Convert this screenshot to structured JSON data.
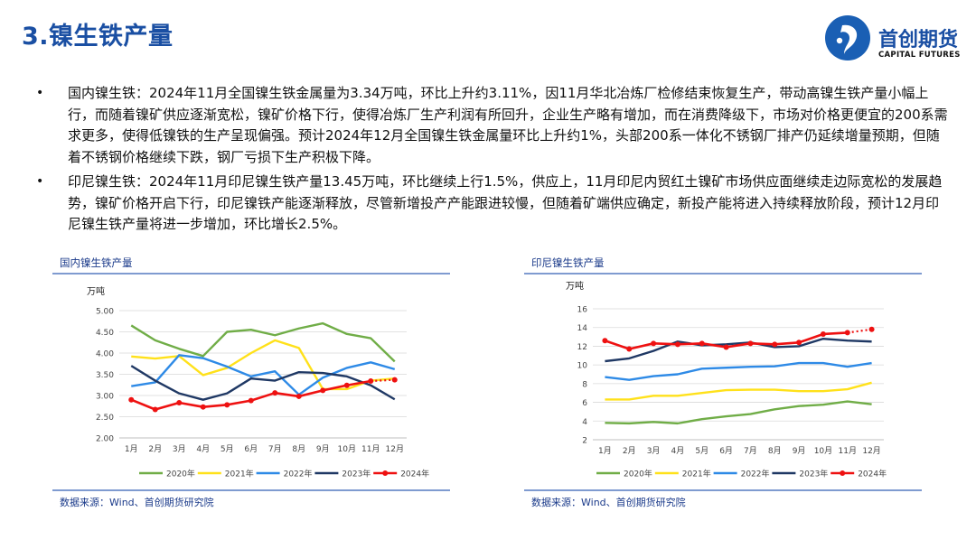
{
  "slide": {
    "title": "3.镍生铁产量"
  },
  "logo": {
    "name_cn": "首创期货",
    "name_en": "CAPITAL FUTURES",
    "colors": {
      "primary": "#1a5fb4",
      "text": "#111111"
    }
  },
  "bullets": [
    "国内镍生铁：2024年11月全国镍生铁金属量为3.34万吨，环比上升约3.11%，因11月华北冶炼厂检修结束恢复生产，带动高镍生铁产量小幅上行，而随着镍矿供应逐渐宽松，镍矿价格下行，使得冶炼厂生产利润有所回升，企业生产略有增加，而在消费降级下，市场对价格更便宜的200系需求更多，使得低镍铁的生产呈现偏强。预计2024年12月全国镍生铁金属量环比上升约1%，头部200系一体化不锈钢厂排产仍延续增量预期，但随着不锈钢价格继续下跌，钢厂亏损下生产积极下降。",
    "印尼镍生铁：2024年11月印尼镍生铁产量13.45万吨，环比继续上行1.5%，供应上，11月印尼内贸红土镍矿市场供应面继续走边际宽松的发展趋势，镍矿价格开启下行，印尼镍铁产能逐渐释放，尽管新增投产产能跟进较慢，但随着矿端供应确定，新投产能将进入持续释放阶段，预计12月印尼镍生铁产量将进一步增加，环比增长2.5%。"
  ],
  "panels": {
    "left": {
      "title": "国内镍生铁产量",
      "source": "数据来源：Wind、首创期货研究院"
    },
    "right": {
      "title": "印尼镍生铁产量",
      "source": "数据来源：Wind、首创期货研究院"
    }
  },
  "chart_data": [
    {
      "type": "line",
      "title": "国内镍生铁产量",
      "ylabel": "万吨",
      "categories": [
        "1月",
        "2月",
        "3月",
        "4月",
        "5月",
        "6月",
        "7月",
        "8月",
        "9月",
        "10月",
        "11月",
        "12月"
      ],
      "ylim": [
        2.0,
        5.0
      ],
      "yticks": [
        "2.00",
        "2.50",
        "3.00",
        "3.50",
        "4.00",
        "4.50",
        "5.00"
      ],
      "grid": true,
      "legend": "bottom",
      "series": [
        {
          "name": "2020年",
          "color": "#70ad47",
          "values": [
            4.65,
            4.3,
            4.1,
            3.93,
            4.5,
            4.55,
            4.42,
            4.58,
            4.7,
            4.45,
            4.35,
            3.8
          ]
        },
        {
          "name": "2021年",
          "color": "#ffe11a",
          "values": [
            3.92,
            3.87,
            3.93,
            3.48,
            3.65,
            4.0,
            4.3,
            4.12,
            3.15,
            3.15,
            3.35,
            3.4
          ]
        },
        {
          "name": "2022年",
          "color": "#2e8ae6",
          "values": [
            3.22,
            3.31,
            3.95,
            3.88,
            3.68,
            3.45,
            3.57,
            3.02,
            3.42,
            3.65,
            3.78,
            3.62
          ]
        },
        {
          "name": "2023年",
          "color": "#1f3864",
          "values": [
            3.7,
            3.35,
            3.05,
            2.9,
            3.05,
            3.4,
            3.35,
            3.55,
            3.53,
            3.45,
            3.24,
            2.91
          ]
        },
        {
          "name": "2024年",
          "color": "#ee1111",
          "markers": true,
          "values": [
            2.9,
            2.67,
            2.83,
            2.73,
            2.78,
            2.88,
            3.06,
            2.98,
            3.12,
            3.24,
            3.34,
            3.37
          ]
        }
      ]
    },
    {
      "type": "line",
      "title": "印尼镍生铁产量",
      "ylabel": "万吨",
      "categories": [
        "1月",
        "2月",
        "3月",
        "4月",
        "5月",
        "6月",
        "7月",
        "8月",
        "9月",
        "10月",
        "11月",
        "12月"
      ],
      "ylim": [
        2,
        16
      ],
      "yticks": [
        "2",
        "4",
        "6",
        "8",
        "10",
        "12",
        "14",
        "16"
      ],
      "grid": true,
      "legend": "bottom",
      "series": [
        {
          "name": "2020年",
          "color": "#70ad47",
          "values": [
            3.8,
            3.75,
            3.9,
            3.75,
            4.2,
            4.5,
            4.75,
            5.25,
            5.6,
            5.75,
            6.1,
            5.8
          ]
        },
        {
          "name": "2021年",
          "color": "#ffe11a",
          "values": [
            6.3,
            6.3,
            6.7,
            6.7,
            7.0,
            7.3,
            7.35,
            7.35,
            7.2,
            7.2,
            7.4,
            8.1
          ]
        },
        {
          "name": "2022年",
          "color": "#2e8ae6",
          "values": [
            8.7,
            8.4,
            8.8,
            9.0,
            9.6,
            9.7,
            9.8,
            9.85,
            10.2,
            10.2,
            9.8,
            10.2
          ]
        },
        {
          "name": "2023年",
          "color": "#1f3864",
          "values": [
            10.4,
            10.7,
            11.5,
            12.5,
            12.1,
            12.2,
            12.4,
            11.9,
            12.0,
            12.8,
            12.6,
            12.5
          ]
        },
        {
          "name": "2024年",
          "color": "#ee1111",
          "markers": true,
          "values": [
            12.6,
            11.7,
            12.3,
            12.2,
            12.3,
            11.9,
            12.3,
            12.2,
            12.4,
            13.3,
            13.45,
            13.8
          ]
        }
      ]
    }
  ]
}
